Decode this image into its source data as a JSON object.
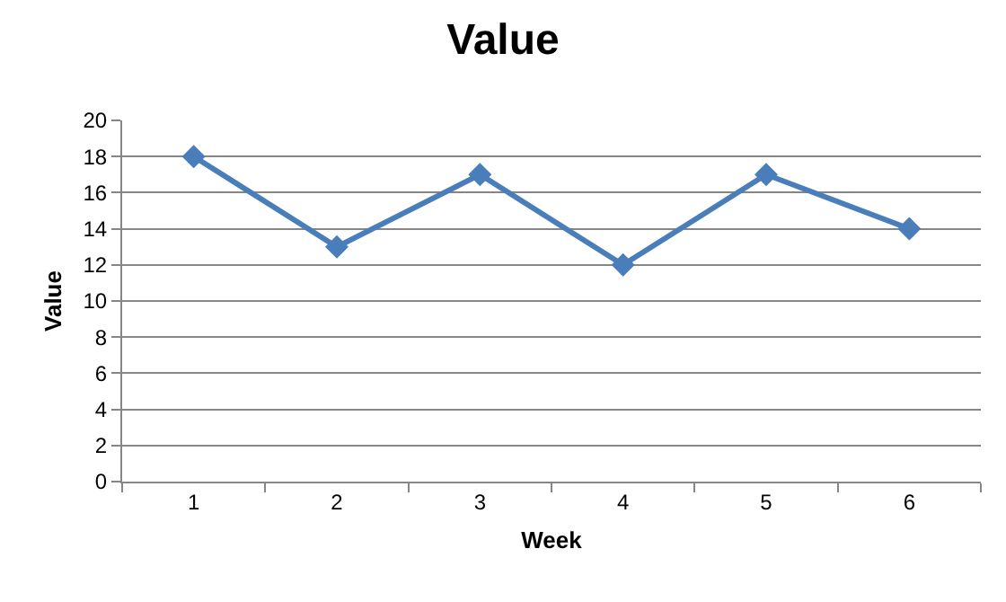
{
  "chart_data": {
    "type": "line",
    "title": "Value",
    "xlabel": "Week",
    "ylabel": "Value",
    "categories": [
      "1",
      "2",
      "3",
      "4",
      "5",
      "6"
    ],
    "series": [
      {
        "color": "#4a7ebb",
        "values": [
          18,
          13,
          17,
          12,
          17,
          14
        ]
      }
    ],
    "ylim": [
      0,
      20
    ],
    "yticks": [
      0,
      2,
      4,
      6,
      8,
      10,
      12,
      14,
      16,
      18,
      20
    ],
    "grid": "y",
    "marker": "diamond",
    "line_style": "solid"
  }
}
